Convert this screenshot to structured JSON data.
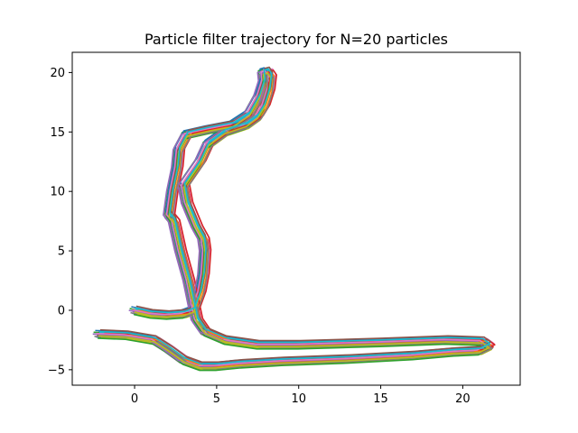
{
  "chart_data": {
    "type": "line",
    "title": "Particle filter trajectory for N=20 particles",
    "xlabel": "",
    "ylabel": "",
    "xlim": [
      -3.8,
      23.5
    ],
    "ylim": [
      -6.3,
      21.7
    ],
    "xticks": [
      0,
      5,
      10,
      15,
      20
    ],
    "yticks": [
      -5,
      0,
      5,
      10,
      15,
      20
    ],
    "xtick_labels": [
      "0",
      "5",
      "10",
      "15",
      "20"
    ],
    "ytick_labels": [
      "−5",
      "0",
      "5",
      "10",
      "15",
      "20"
    ],
    "grid": false,
    "legend": "none",
    "base_path": {
      "x": [
        -2.2,
        -0.5,
        1.2,
        2.0,
        3.0,
        4.0,
        5.0,
        6.5,
        9.0,
        13.0,
        17.0,
        19.5,
        21.0,
        21.6,
        21.2,
        19.0,
        15.0,
        10.0,
        7.5,
        5.5,
        4.3,
        3.8,
        3.6,
        3.3,
        2.8,
        2.4,
        2.1,
        2.3,
        2.6,
        2.7,
        3.2,
        4.5,
        6.0,
        7.0,
        7.6,
        7.9,
        7.85,
        8.1,
        8.3,
        8.2,
        7.9,
        7.5,
        6.8,
        5.5,
        4.5,
        4.0,
        3.5,
        3.0,
        3.2,
        3.8,
        4.2,
        4.3,
        4.2,
        4.0,
        3.6,
        3.0,
        2.0,
        1.0,
        0.0
      ],
      "y": [
        -2.0,
        -2.1,
        -2.5,
        -3.2,
        -4.2,
        -4.7,
        -4.7,
        -4.5,
        -4.3,
        -4.1,
        -3.8,
        -3.5,
        -3.4,
        -3.0,
        -2.6,
        -2.5,
        -2.7,
        -2.9,
        -2.9,
        -2.5,
        -1.8,
        -0.8,
        0.5,
        2.5,
        5.0,
        7.5,
        8.0,
        10.0,
        12.0,
        13.5,
        14.8,
        15.2,
        15.6,
        16.5,
        18.0,
        19.3,
        20.0,
        20.1,
        19.7,
        18.5,
        17.2,
        16.3,
        15.6,
        15.0,
        14.0,
        12.5,
        11.5,
        10.5,
        9.0,
        7.0,
        6.0,
        5.0,
        3.0,
        1.5,
        0.0,
        -0.3,
        -0.4,
        -0.3,
        0.0
      ]
    },
    "series_colors": [
      "#1f77b4",
      "#ff7f0e",
      "#2ca02c",
      "#d62728",
      "#9467bd",
      "#8c564b",
      "#e377c2",
      "#7f7f7f",
      "#bcbd22",
      "#17becf",
      "#1f77b4",
      "#ff7f0e",
      "#2ca02c",
      "#d62728",
      "#9467bd",
      "#8c564b",
      "#e377c2",
      "#7f7f7f",
      "#bcbd22",
      "#17becf"
    ],
    "particle_offsets": [
      [
        -0.15,
        -0.25
      ],
      [
        0.1,
        0.05
      ],
      [
        -0.3,
        0.15
      ],
      [
        0.25,
        -0.1
      ],
      [
        0.0,
        0.25
      ],
      [
        -0.1,
        -0.1
      ],
      [
        0.3,
        0.2
      ],
      [
        -0.25,
        -0.2
      ],
      [
        0.15,
        -0.3
      ],
      [
        0.05,
        0.1
      ],
      [
        -0.2,
        0.3
      ],
      [
        0.2,
        0.0
      ],
      [
        -0.05,
        -0.35
      ],
      [
        0.35,
        0.1
      ],
      [
        -0.35,
        0.0
      ],
      [
        0.1,
        0.35
      ],
      [
        -0.15,
        0.05
      ],
      [
        0.2,
        -0.2
      ],
      [
        0.0,
        -0.15
      ],
      [
        0.05,
        0.2
      ]
    ]
  }
}
